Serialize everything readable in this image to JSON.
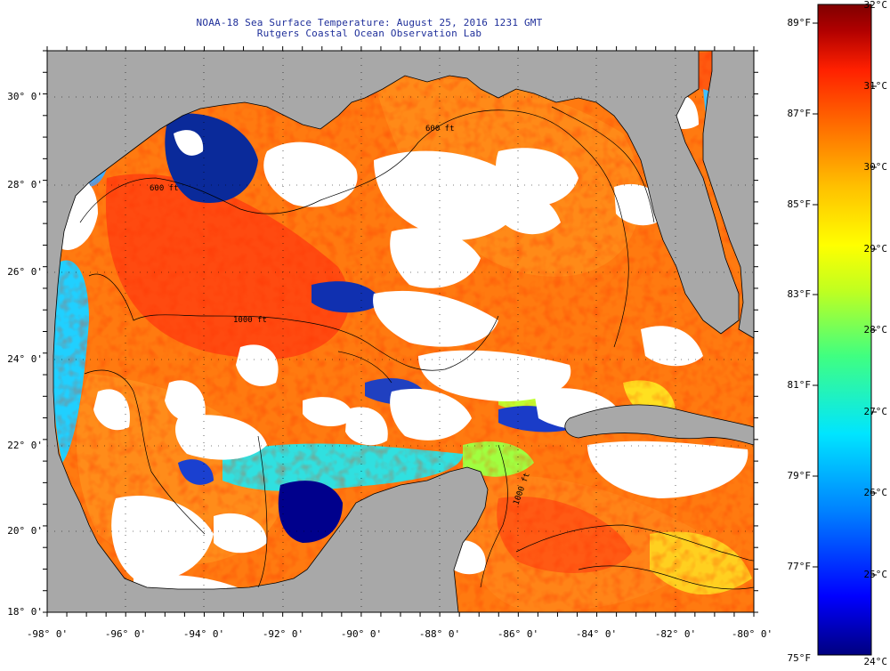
{
  "header": {
    "title": "NOAA-18 Sea Surface Temperature:  August 25, 2016 1231 GMT",
    "subtitle": "Rutgers Coastal Ocean Observation Lab"
  },
  "map": {
    "lat_labels": [
      "30° 0'",
      "28° 0'",
      "26° 0'",
      "24° 0'",
      "22° 0'",
      "20° 0'",
      "18° 0'"
    ],
    "lon_labels": [
      "-98° 0'",
      "-96° 0'",
      "-94° 0'",
      "-92° 0'",
      "-90° 0'",
      "-88° 0'",
      "-86° 0'",
      "-84° 0'",
      "-82° 0'",
      "-80° 0'"
    ],
    "lat_range": [
      18,
      31
    ],
    "lon_range": [
      -98,
      -80
    ],
    "land_color": "#a8a8a8",
    "cloud_color": "#ffffff",
    "contour_labels": [
      "600 ft",
      "1000 ft",
      "1000 ft",
      "600 ft"
    ]
  },
  "colorbar": {
    "fahrenheit_labels": [
      "89°F",
      "87°F",
      "85°F",
      "83°F",
      "81°F",
      "79°F",
      "77°F",
      "75°F"
    ],
    "celsius_labels": [
      "32°C",
      "31°C",
      "30°C",
      "29°C",
      "28°C",
      "27°C",
      "26°C",
      "25°C",
      "24°C"
    ],
    "range_c": [
      24,
      32
    ],
    "colors": [
      "#00007f",
      "#0000ff",
      "#0080ff",
      "#00e5ff",
      "#40ff80",
      "#c0ff20",
      "#ffff00",
      "#ffc000",
      "#ff7000",
      "#ff2000",
      "#b00000",
      "#7f0000"
    ]
  }
}
